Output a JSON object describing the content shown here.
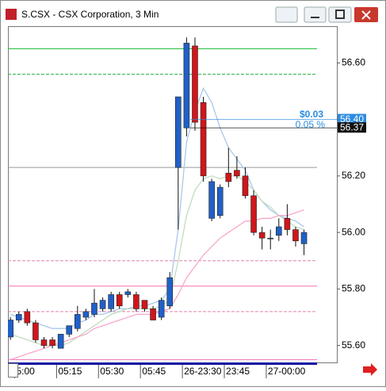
{
  "window": {
    "title": "S.CSX - CSX Corporation, 3 Min"
  },
  "chart_data": {
    "type": "candlestick",
    "open": [
      55.63,
      55.69,
      55.72,
      55.68,
      55.62,
      55.62,
      55.59,
      55.64,
      55.66,
      55.7,
      55.71,
      55.73,
      55.73,
      55.78,
      55.78,
      55.78,
      55.76,
      55.73,
      55.7,
      55.74,
      56.23,
      56.37,
      56.66,
      56.46,
      56.05,
      56.06,
      56.21,
      56.22,
      56.2,
      56.13,
      56.0,
      55.98,
      55.99,
      56.05,
      56.01,
      55.96
    ],
    "high": [
      55.7,
      55.72,
      55.73,
      55.69,
      55.63,
      55.63,
      55.64,
      55.67,
      55.74,
      55.73,
      55.8,
      55.77,
      55.79,
      55.79,
      55.8,
      55.79,
      55.76,
      55.74,
      55.77,
      55.86,
      56.48,
      56.69,
      56.69,
      56.48,
      56.19,
      56.17,
      56.3,
      56.27,
      56.23,
      56.15,
      56.02,
      56.01,
      56.05,
      56.1,
      56.02,
      56.01
    ],
    "low": [
      55.62,
      55.68,
      55.67,
      55.61,
      55.59,
      55.59,
      55.59,
      55.63,
      55.65,
      55.69,
      55.7,
      55.72,
      55.72,
      55.73,
      55.77,
      55.72,
      55.72,
      55.69,
      55.69,
      55.73,
      56.01,
      56.34,
      56.36,
      56.18,
      56.04,
      56.05,
      56.16,
      56.19,
      56.12,
      55.99,
      55.94,
      55.94,
      55.97,
      55.99,
      55.95,
      55.92
    ],
    "close": [
      55.69,
      55.71,
      55.68,
      55.62,
      55.6,
      55.6,
      55.64,
      55.67,
      55.71,
      55.72,
      55.75,
      55.76,
      55.78,
      55.74,
      55.79,
      55.73,
      55.73,
      55.69,
      55.76,
      55.84,
      56.48,
      56.67,
      56.39,
      56.2,
      56.18,
      56.16,
      56.18,
      56.2,
      56.13,
      56.0,
      55.98,
      55.98,
      56.02,
      56.01,
      55.97,
      56.0
    ],
    "up_color": "#2060c8",
    "down_color": "#d0161b",
    "series": [
      {
        "color": "#a9c8e8",
        "values": [
          55.71,
          55.7,
          55.69,
          55.68,
          55.67,
          55.66,
          55.66,
          55.66,
          55.68,
          55.69,
          55.71,
          55.71,
          55.72,
          55.73,
          55.73,
          55.74,
          55.74,
          55.75,
          55.76,
          55.8,
          56.01,
          56.32,
          56.43,
          56.51,
          56.46,
          56.37,
          56.3,
          56.26,
          56.22,
          56.15,
          56.11,
          56.08,
          56.06,
          56.05,
          56.04,
          56.02
        ]
      },
      {
        "color": "#c2dcc0",
        "values": [
          55.64,
          55.63,
          55.62,
          55.61,
          55.6,
          55.6,
          55.6,
          55.61,
          55.63,
          55.65,
          55.67,
          55.69,
          55.71,
          55.72,
          55.73,
          55.73,
          55.73,
          55.73,
          55.74,
          55.76,
          55.9,
          56.06,
          56.15,
          56.19,
          56.2,
          56.19,
          56.2,
          56.2,
          56.18,
          56.15,
          56.11,
          56.09,
          56.06,
          56.04,
          56.02,
          56.01
        ]
      },
      {
        "color": "#f7a8cc",
        "values": [
          55.55,
          55.56,
          55.57,
          55.58,
          55.59,
          55.6,
          55.61,
          55.62,
          55.63,
          55.64,
          55.66,
          55.67,
          55.68,
          55.69,
          55.7,
          55.71,
          55.71,
          55.71,
          55.72,
          55.73,
          55.78,
          55.84,
          55.88,
          55.92,
          55.95,
          55.98,
          56.0,
          56.02,
          56.04,
          56.04,
          56.05,
          56.05,
          56.06,
          56.06,
          56.07,
          56.08
        ]
      }
    ],
    "levels": [
      {
        "value": 56.65,
        "color": "#22c040",
        "dash": false
      },
      {
        "value": 56.56,
        "color": "#22b040",
        "dash": true
      },
      {
        "value": 56.23,
        "color": "#999999",
        "dash": false
      },
      {
        "value": 55.9,
        "color": "#e080b0",
        "dash": true
      },
      {
        "value": 55.81,
        "color": "#f070b0",
        "dash": false
      },
      {
        "value": 55.72,
        "color": "#e080b0",
        "dash": true
      },
      {
        "value": 55.55,
        "color": "#f070b0",
        "dash": false
      }
    ],
    "price_markers": [
      {
        "value": 56.4,
        "label": "56.40",
        "color": "#2b8be0"
      },
      {
        "value": 56.37,
        "label": "56.37",
        "color": "#111111"
      }
    ],
    "change": "$0.03",
    "change_pct": "0.05 %",
    "ylim": [
      55.54,
      56.73
    ],
    "yticks": [
      {
        "value": 55.6,
        "label": "55.60"
      },
      {
        "value": 55.8,
        "label": "55.80"
      },
      {
        "value": 56.0,
        "label": "56.00"
      },
      {
        "value": 56.2,
        "label": "56.20"
      },
      {
        "value": 56.4,
        "label": "56.40"
      },
      {
        "value": 56.6,
        "label": "56.60"
      }
    ],
    "xlim": [
      -0.3,
      37.5
    ],
    "xticks": [
      {
        "value": 0.5,
        "label": "5:00"
      },
      {
        "value": 5.5,
        "label": "05:15"
      },
      {
        "value": 10.5,
        "label": "05:30"
      },
      {
        "value": 15.5,
        "label": "05:45"
      },
      {
        "value": 20.5,
        "label": "26-23:30"
      },
      {
        "value": 25.5,
        "label": "23:45"
      },
      {
        "value": 30.5,
        "label": "27-00:00"
      }
    ]
  }
}
